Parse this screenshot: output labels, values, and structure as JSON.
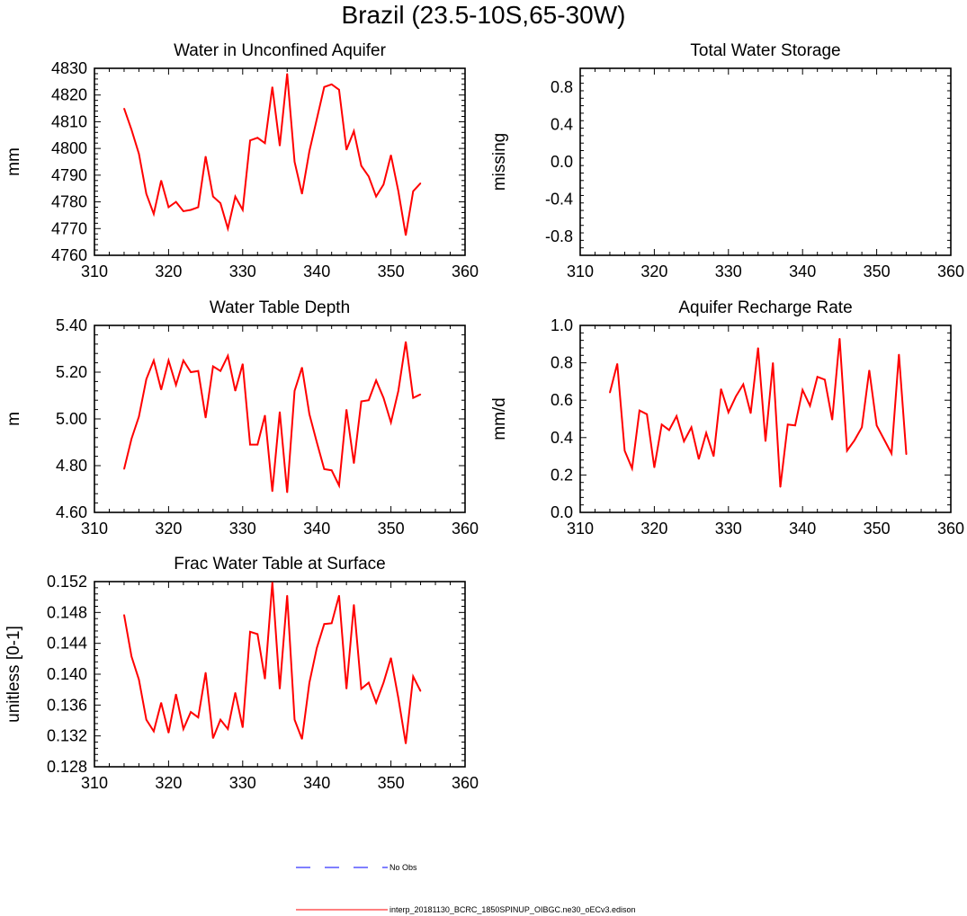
{
  "title": "Brazil (23.5-10S,65-30W)",
  "chart_data": [
    {
      "type": "line",
      "title": "Water in Unconfined Aquifer",
      "xlabel": "",
      "ylabel": "mm",
      "xlim": [
        310,
        360
      ],
      "ylim": [
        4760,
        4830
      ],
      "xticks": [
        310,
        320,
        330,
        340,
        350,
        360
      ],
      "yticks": [
        4760,
        4770,
        4780,
        4790,
        4800,
        4810,
        4820,
        4830
      ],
      "ytick_labels": [
        "4760",
        "4770",
        "4780",
        "4790",
        "4800",
        "4810",
        "4820",
        "4830"
      ],
      "x": [
        314,
        315,
        316,
        317,
        318,
        319,
        320,
        321,
        322,
        323,
        324,
        325,
        326,
        327,
        328,
        329,
        330,
        331,
        332,
        333,
        334,
        335,
        336,
        337,
        338,
        339,
        340,
        341,
        342,
        343,
        344,
        345,
        346,
        347,
        348,
        349,
        350,
        351,
        352,
        353,
        354
      ],
      "series": [
        {
          "name": "interp_20181130_BCRC_1850SPINUP_OIBGC.ne30_oECv3.edison",
          "color": "#ff0000",
          "values": [
            4815,
            4807,
            4798,
            4783,
            4775.5,
            4788,
            4778,
            4780,
            4776.5,
            4777,
            4778,
            4797,
            4782,
            4779.5,
            4770,
            4782,
            4777,
            4803,
            4804,
            4802,
            4823,
            4801,
            4828,
            4795,
            4783,
            4799,
            4811,
            4823,
            4824,
            4822,
            4799.5,
            4806.5,
            4793.5,
            4789.5,
            4782,
            4786.5,
            4797.5,
            4784,
            4767.5,
            4784,
            4787
          ]
        }
      ]
    },
    {
      "type": "line",
      "title": "Total Water Storage",
      "xlabel": "",
      "ylabel": "missing",
      "xlim": [
        310,
        360
      ],
      "ylim": [
        -1,
        1
      ],
      "xticks": [
        310,
        320,
        330,
        340,
        350,
        360
      ],
      "yticks": [
        -0.8,
        -0.4,
        0.0,
        0.4,
        0.8
      ],
      "ytick_labels": [
        "-0.8",
        "-0.4",
        "0.0",
        "0.4",
        "0.8"
      ],
      "x": [],
      "series": []
    },
    {
      "type": "line",
      "title": "Water Table Depth",
      "xlabel": "",
      "ylabel": "m",
      "xlim": [
        310,
        360
      ],
      "ylim": [
        4.6,
        5.4
      ],
      "xticks": [
        310,
        320,
        330,
        340,
        350,
        360
      ],
      "yticks": [
        4.6,
        4.8,
        5.0,
        5.2,
        5.4
      ],
      "ytick_labels": [
        "4.60",
        "4.80",
        "5.00",
        "5.20",
        "5.40"
      ],
      "x": [
        314,
        315,
        316,
        317,
        318,
        319,
        320,
        321,
        322,
        323,
        324,
        325,
        326,
        327,
        328,
        329,
        330,
        331,
        332,
        333,
        334,
        335,
        336,
        337,
        338,
        339,
        340,
        341,
        342,
        343,
        344,
        345,
        346,
        347,
        348,
        349,
        350,
        351,
        352,
        353,
        354
      ],
      "series": [
        {
          "name": "interp_20181130_BCRC_1850SPINUP_OIBGC.ne30_oECv3.edison",
          "color": "#ff0000",
          "values": [
            4.785,
            4.915,
            5.01,
            5.17,
            5.25,
            5.125,
            5.25,
            5.145,
            5.25,
            5.2,
            5.205,
            5.005,
            5.225,
            5.205,
            5.27,
            5.12,
            5.235,
            4.89,
            4.89,
            5.015,
            4.69,
            5.03,
            4.685,
            5.12,
            5.22,
            5.02,
            4.9,
            4.785,
            4.78,
            4.715,
            5.04,
            4.81,
            5.075,
            5.08,
            5.165,
            5.09,
            4.985,
            5.12,
            5.33,
            5.09,
            5.105
          ]
        }
      ]
    },
    {
      "type": "line",
      "title": "Aquifer Recharge Rate",
      "xlabel": "",
      "ylabel": "mm/d",
      "xlim": [
        310,
        360
      ],
      "ylim": [
        0,
        1
      ],
      "xticks": [
        310,
        320,
        330,
        340,
        350,
        360
      ],
      "yticks": [
        0,
        0.2,
        0.4,
        0.6,
        0.8,
        1.0
      ],
      "ytick_labels": [
        "0.0",
        "0.2",
        "0.4",
        "0.6",
        "0.8",
        "1.0"
      ],
      "x": [
        314,
        315,
        316,
        317,
        318,
        319,
        320,
        321,
        322,
        323,
        324,
        325,
        326,
        327,
        328,
        329,
        330,
        331,
        332,
        333,
        334,
        335,
        336,
        337,
        338,
        339,
        340,
        341,
        342,
        343,
        344,
        345,
        346,
        347,
        348,
        349,
        350,
        351,
        352,
        353,
        354
      ],
      "series": [
        {
          "name": "interp_20181130_BCRC_1850SPINUP_OIBGC.ne30_oECv3.edison",
          "color": "#ff0000",
          "values": [
            0.64,
            0.795,
            0.33,
            0.235,
            0.545,
            0.525,
            0.24,
            0.47,
            0.44,
            0.515,
            0.38,
            0.455,
            0.285,
            0.425,
            0.3,
            0.66,
            0.535,
            0.62,
            0.685,
            0.53,
            0.88,
            0.38,
            0.8,
            0.135,
            0.47,
            0.465,
            0.655,
            0.57,
            0.725,
            0.71,
            0.495,
            0.93,
            0.33,
            0.385,
            0.455,
            0.76,
            0.465,
            0.39,
            0.315,
            0.845,
            0.31
          ]
        }
      ]
    },
    {
      "type": "line",
      "title": "Frac Water Table at Surface",
      "xlabel": "",
      "ylabel": "unitless [0-1]",
      "xlim": [
        310,
        360
      ],
      "ylim": [
        0.128,
        0.152
      ],
      "xticks": [
        310,
        320,
        330,
        340,
        350,
        360
      ],
      "yticks": [
        0.128,
        0.132,
        0.136,
        0.14,
        0.144,
        0.148,
        0.152
      ],
      "ytick_labels": [
        "0.128",
        "0.132",
        "0.136",
        "0.140",
        "0.144",
        "0.148",
        "0.152"
      ],
      "x": [
        314,
        315,
        316,
        317,
        318,
        319,
        320,
        321,
        322,
        323,
        324,
        325,
        326,
        327,
        328,
        329,
        330,
        331,
        332,
        333,
        334,
        335,
        336,
        337,
        338,
        339,
        340,
        341,
        342,
        343,
        344,
        345,
        346,
        347,
        348,
        349,
        350,
        351,
        352,
        353,
        354
      ],
      "series": [
        {
          "name": "interp_20181130_BCRC_1850SPINUP_OIBGC.ne30_oECv3.edison",
          "color": "#ff0000",
          "values": [
            0.1477,
            0.1423,
            0.1393,
            0.1341,
            0.1326,
            0.1363,
            0.1324,
            0.1374,
            0.1329,
            0.1351,
            0.1344,
            0.1402,
            0.1317,
            0.1341,
            0.1329,
            0.1376,
            0.1331,
            0.1455,
            0.1452,
            0.1394,
            0.1519,
            0.1381,
            0.1502,
            0.1341,
            0.1316,
            0.1389,
            0.1434,
            0.1465,
            0.1466,
            0.1502,
            0.1381,
            0.149,
            0.1381,
            0.1389,
            0.1363,
            0.1389,
            0.1421,
            0.1369,
            0.131,
            0.1397,
            0.1378
          ]
        }
      ]
    }
  ],
  "legend": [
    {
      "label": "No Obs",
      "color": "#0000ff",
      "style": "dashed"
    },
    {
      "label": "interp_20181130_BCRC_1850SPINUP_OIBGC.ne30_oECv3.edison",
      "color": "#ff0000",
      "style": "solid"
    }
  ]
}
